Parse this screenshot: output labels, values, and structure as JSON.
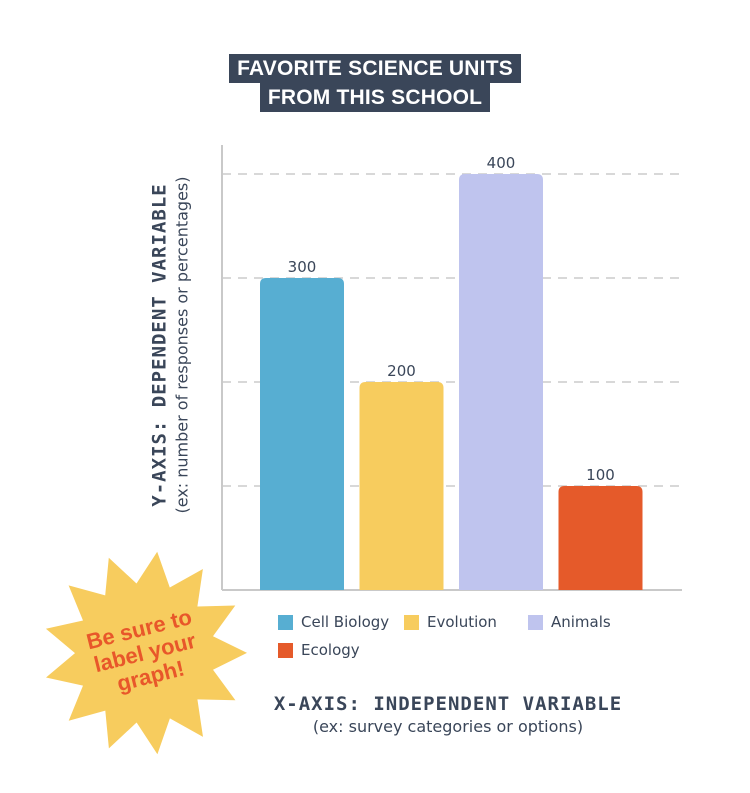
{
  "chart_data": {
    "type": "bar",
    "title_lines": [
      "FAVORITE SCIENCE UNITS",
      "FROM THIS SCHOOL"
    ],
    "categories": [
      "Cell Biology",
      "Evolution",
      "Animals",
      "Ecology"
    ],
    "values": [
      300,
      200,
      400,
      100
    ],
    "colors": [
      "#57aed2",
      "#f7cc5e",
      "#bfc4ee",
      "#e55a2a"
    ],
    "ylim": [
      0,
      430
    ],
    "gridlines": [
      100,
      200,
      300,
      400
    ],
    "grid": true,
    "legend_position": "bottom",
    "ylabel": "Y-AXIS: DEPENDENT VARIABLE",
    "ylabel_sub": "(ex: number of responses or percentages)",
    "xlabel": "X-AXIS: INDEPENDENT VARIABLE",
    "xlabel_sub": "(ex: survey categories or options)"
  },
  "callout": {
    "lines": [
      "Be sure to",
      "label your",
      "graph!"
    ],
    "shape": "starburst",
    "fill": "#f7cc5e",
    "text_color": "#e8572a"
  },
  "colors": {
    "text": "#3a4659",
    "axis": "#c9c9c9",
    "grid": "#cccccc"
  }
}
